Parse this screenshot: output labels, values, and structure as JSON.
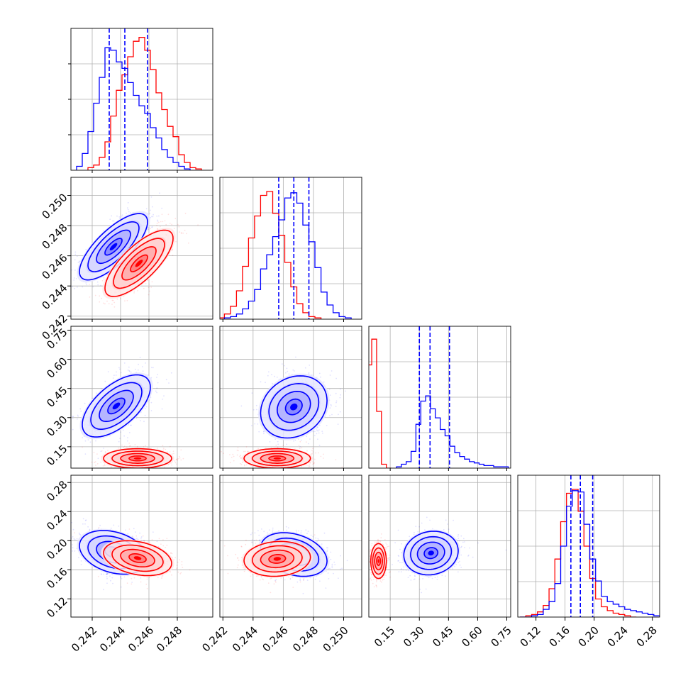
{
  "chart_data": {
    "type": "corner",
    "colors": {
      "series_a": "#0000ff",
      "series_b": "#ff0000",
      "quantile_line": "#0000ff",
      "grid": "#b0b0b0"
    },
    "grid": true,
    "parameters": [
      {
        "range": [
          0.2405,
          0.2505
        ],
        "ticks": [
          "0.242",
          "0.244",
          "0.246",
          "0.248"
        ]
      },
      {
        "range": [
          0.2418,
          0.2512
        ],
        "ticks": [
          "0.242",
          "0.244",
          "0.246",
          "0.248",
          "0.250"
        ]
      },
      {
        "range": [
          0.04,
          0.77
        ],
        "ticks": [
          "0.15",
          "0.30",
          "0.45",
          "0.60",
          "0.75"
        ]
      },
      {
        "range": [
          0.095,
          0.29
        ],
        "ticks": [
          "0.12",
          "0.16",
          "0.20",
          "0.24",
          "0.28"
        ]
      }
    ],
    "histograms": [
      {
        "quantiles": [
          0.2432,
          0.2443,
          0.2459
        ],
        "blue": {
          "x": [
            0.2411,
            0.2415,
            0.2419,
            0.2423,
            0.2427,
            0.2431,
            0.2435,
            0.2439,
            0.2443,
            0.2447,
            0.2451,
            0.2455,
            0.2459,
            0.2463,
            0.2467,
            0.2471,
            0.2475,
            0.2479,
            0.2483,
            0.2487
          ],
          "y": [
            0.03,
            0.13,
            0.3,
            0.52,
            0.72,
            0.95,
            0.93,
            0.84,
            0.79,
            0.68,
            0.58,
            0.5,
            0.44,
            0.33,
            0.25,
            0.16,
            0.1,
            0.06,
            0.03,
            0.01
          ]
        },
        "red": {
          "x": [
            0.2419,
            0.2423,
            0.2427,
            0.2431,
            0.2435,
            0.2439,
            0.2443,
            0.2447,
            0.2451,
            0.2455,
            0.2459,
            0.2463,
            0.2467,
            0.2471,
            0.2475,
            0.2479,
            0.2483,
            0.2487,
            0.2491,
            0.2495
          ],
          "y": [
            0.02,
            0.04,
            0.1,
            0.22,
            0.42,
            0.62,
            0.74,
            0.88,
            1.0,
            1.03,
            0.93,
            0.78,
            0.6,
            0.47,
            0.34,
            0.26,
            0.12,
            0.06,
            0.02,
            0.01
          ]
        }
      },
      {
        "quantiles": [
          0.2457,
          0.2467,
          0.2477
        ],
        "blue": {
          "x": [
            0.2423,
            0.2427,
            0.2431,
            0.2435,
            0.2439,
            0.2443,
            0.2447,
            0.2451,
            0.2455,
            0.2459,
            0.2463,
            0.2467,
            0.2471,
            0.2475,
            0.2479,
            0.2483,
            0.2487,
            0.2491,
            0.2495,
            0.2499,
            0.2503
          ],
          "y": [
            0.01,
            0.02,
            0.04,
            0.08,
            0.14,
            0.23,
            0.39,
            0.5,
            0.64,
            0.77,
            0.94,
            0.98,
            0.9,
            0.73,
            0.6,
            0.4,
            0.21,
            0.11,
            0.05,
            0.02,
            0.01
          ]
        },
        "red": {
          "x": [
            0.2419,
            0.2423,
            0.2427,
            0.2431,
            0.2435,
            0.2439,
            0.2443,
            0.2447,
            0.2451,
            0.2455,
            0.2459,
            0.2463,
            0.2467,
            0.2471,
            0.2475,
            0.2479,
            0.2483
          ],
          "y": [
            0.01,
            0.04,
            0.1,
            0.22,
            0.41,
            0.63,
            0.8,
            0.96,
            0.99,
            0.82,
            0.65,
            0.44,
            0.25,
            0.12,
            0.05,
            0.02,
            0.01
          ]
        }
      },
      {
        "quantiles": [
          0.3,
          0.355,
          0.455
        ],
        "blue": {
          "x": [
            0.195,
            0.22,
            0.245,
            0.27,
            0.295,
            0.32,
            0.345,
            0.37,
            0.395,
            0.42,
            0.445,
            0.47,
            0.495,
            0.52,
            0.545,
            0.57,
            0.595,
            0.62,
            0.645,
            0.67,
            0.695,
            0.72,
            0.745
          ],
          "y": [
            0.01,
            0.03,
            0.05,
            0.13,
            0.34,
            0.52,
            0.56,
            0.46,
            0.39,
            0.3,
            0.25,
            0.17,
            0.12,
            0.09,
            0.07,
            0.05,
            0.04,
            0.03,
            0.02,
            0.02,
            0.01,
            0.01,
            0.01
          ]
        },
        "red": {
          "x": [
            0.0425,
            0.0675,
            0.0925,
            0.1175,
            0.1425
          ],
          "y": [
            0.8,
            1.0,
            0.44,
            0.03,
            0.0
          ]
        }
      },
      {
        "quantiles": [
          0.168,
          0.181,
          0.198
        ],
        "blue": {
          "x": [
            0.102,
            0.11,
            0.118,
            0.126,
            0.134,
            0.142,
            0.15,
            0.158,
            0.166,
            0.174,
            0.182,
            0.19,
            0.198,
            0.206,
            0.214,
            0.222,
            0.23,
            0.238,
            0.246,
            0.254,
            0.262,
            0.27,
            0.278,
            0.286
          ],
          "y": [
            0.0,
            0.0,
            0.01,
            0.02,
            0.06,
            0.12,
            0.26,
            0.55,
            0.86,
            0.98,
            0.97,
            0.72,
            0.45,
            0.28,
            0.16,
            0.12,
            0.1,
            0.08,
            0.06,
            0.05,
            0.04,
            0.03,
            0.02,
            0.01
          ]
        },
        "red": {
          "x": [
            0.102,
            0.11,
            0.118,
            0.126,
            0.134,
            0.142,
            0.15,
            0.158,
            0.166,
            0.174,
            0.182,
            0.19,
            0.198,
            0.206,
            0.214,
            0.222,
            0.23,
            0.238,
            0.246,
            0.254
          ],
          "y": [
            0.0,
            0.01,
            0.02,
            0.04,
            0.09,
            0.22,
            0.45,
            0.74,
            0.96,
            0.99,
            0.82,
            0.55,
            0.3,
            0.14,
            0.08,
            0.05,
            0.03,
            0.02,
            0.01,
            0.0
          ]
        }
      }
    ],
    "joint_2d": [
      {
        "row": 1,
        "col": 0,
        "blue": {
          "mean": [
            0.2435,
            0.2466
          ],
          "sd": [
            0.0012,
            0.0011
          ],
          "rho": 0.75
        },
        "red": {
          "mean": [
            0.2453,
            0.2455
          ],
          "sd": [
            0.0012,
            0.0011
          ],
          "rho": 0.75
        }
      },
      {
        "row": 2,
        "col": 0,
        "blue": {
          "mean": [
            0.2437,
            0.36
          ],
          "sd": [
            0.0012,
            0.08
          ],
          "rho": 0.6
        },
        "red": {
          "mean": [
            0.2452,
            0.09
          ],
          "sd": [
            0.0012,
            0.025
          ],
          "rho": 0.0
        }
      },
      {
        "row": 2,
        "col": 1,
        "blue": {
          "mean": [
            0.2467,
            0.355
          ],
          "sd": [
            0.0011,
            0.08
          ],
          "rho": 0.2
        },
        "red": {
          "mean": [
            0.2456,
            0.09
          ],
          "sd": [
            0.0011,
            0.025
          ],
          "rho": 0.0
        }
      },
      {
        "row": 3,
        "col": 0,
        "blue": {
          "mean": [
            0.2435,
            0.184
          ],
          "sd": [
            0.0012,
            0.015
          ],
          "rho": -0.3
        },
        "red": {
          "mean": [
            0.2452,
            0.176
          ],
          "sd": [
            0.0012,
            0.012
          ],
          "rho": -0.3
        }
      },
      {
        "row": 3,
        "col": 1,
        "blue": {
          "mean": [
            0.2467,
            0.181
          ],
          "sd": [
            0.0011,
            0.015
          ],
          "rho": -0.3
        },
        "red": {
          "mean": [
            0.2456,
            0.175
          ],
          "sd": [
            0.0011,
            0.012
          ],
          "rho": 0.1
        }
      },
      {
        "row": 3,
        "col": 2,
        "blue": {
          "mean": [
            0.36,
            0.183
          ],
          "sd": [
            0.07,
            0.015
          ],
          "rho": 0.1
        },
        "red": {
          "mean": [
            0.09,
            0.172
          ],
          "sd": [
            0.02,
            0.012
          ],
          "rho": 0.0
        }
      }
    ]
  }
}
